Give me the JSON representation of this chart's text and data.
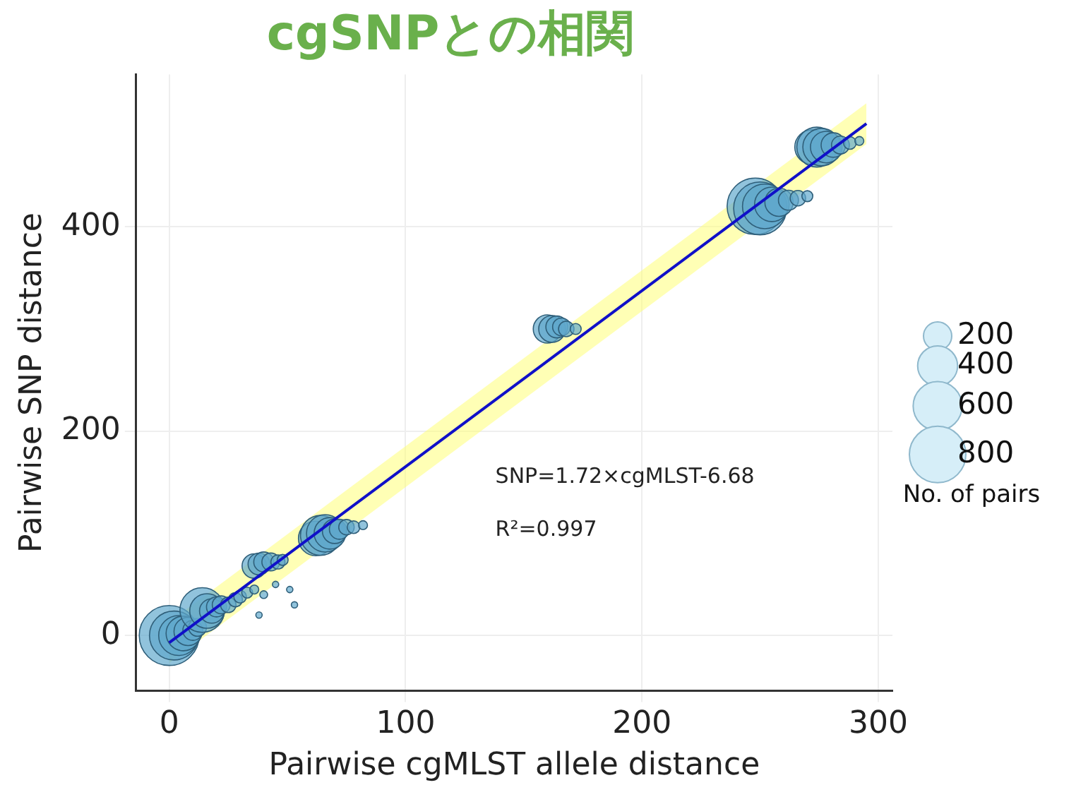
{
  "chart_data": {
    "type": "bubble",
    "title": "cgSNPとの相関",
    "xlabel": "Pairwise cgMLST allele distance",
    "ylabel": "Pairwise SNP distance",
    "legend_title": "No. of pairs",
    "size_legend": [
      200,
      400,
      600,
      800
    ],
    "xlim": [
      -14,
      306
    ],
    "ylim": [
      -54,
      549
    ],
    "xticks": [
      0,
      100,
      200,
      300
    ],
    "yticks": [
      0,
      200,
      400
    ],
    "grid": true,
    "annotations": [
      "SNP=1.72×cgMLST-6.68",
      "R²=0.997"
    ],
    "series": [
      {
        "color": "#5fa8cc",
        "x": [
          0,
          2,
          4,
          6,
          8,
          10,
          12,
          14,
          16,
          18,
          20,
          22,
          25,
          28,
          30,
          33,
          36,
          40,
          38,
          45,
          51,
          53,
          36,
          38,
          40,
          43,
          46,
          48,
          62,
          64,
          66,
          68,
          70,
          72,
          75,
          78,
          82,
          160,
          162,
          164,
          166,
          168,
          172,
          248,
          250,
          252,
          255,
          258,
          262,
          266,
          270,
          272,
          274,
          276,
          278,
          281,
          284,
          288,
          292
        ],
        "values": [
          0,
          0,
          0,
          2,
          4,
          5,
          8,
          25,
          24,
          24,
          28,
          30,
          30,
          35,
          38,
          42,
          45,
          40,
          20,
          50,
          45,
          30,
          68,
          70,
          72,
          72,
          72,
          74,
          95,
          98,
          100,
          100,
          102,
          104,
          106,
          106,
          108,
          300,
          300,
          302,
          302,
          300,
          300,
          420,
          418,
          420,
          422,
          424,
          426,
          428,
          430,
          478,
          478,
          478,
          478,
          480,
          480,
          482,
          484
        ],
        "sizes": [
          900,
          600,
          400,
          300,
          200,
          100,
          80,
          500,
          300,
          150,
          100,
          80,
          60,
          50,
          40,
          30,
          20,
          15,
          10,
          10,
          10,
          10,
          150,
          120,
          100,
          80,
          50,
          30,
          300,
          400,
          350,
          250,
          150,
          100,
          60,
          40,
          20,
          200,
          180,
          120,
          80,
          60,
          30,
          800,
          700,
          500,
          300,
          200,
          100,
          60,
          30,
          300,
          400,
          350,
          250,
          150,
          80,
          40,
          20
        ]
      },
      {
        "type": "line",
        "color": "#1010c8",
        "x": [
          0,
          295
        ],
        "values": [
          -7,
          501
        ],
        "lower": [
          -27,
          481
        ],
        "upper": [
          13,
          521
        ]
      }
    ]
  }
}
